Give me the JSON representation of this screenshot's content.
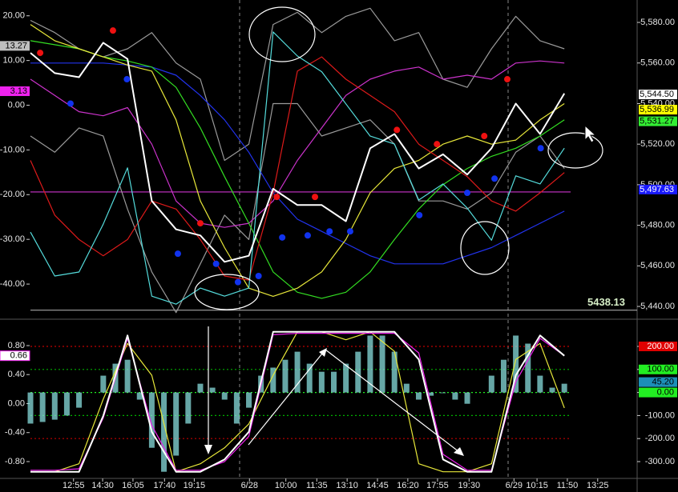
{
  "chart_data": [
    {
      "type": "line",
      "x": [
        0,
        4,
        8,
        12,
        16,
        20,
        24,
        28,
        32,
        36,
        40,
        44,
        48,
        52,
        56,
        60,
        64,
        68,
        72,
        76,
        80,
        84,
        88
      ],
      "xlim": [
        -5.02,
        100
      ],
      "ylim": [
        -47.5,
        22.1
      ],
      "yticks": [
        {
          "value": 20,
          "label": "20.00"
        },
        {
          "value": 10,
          "label": "10.00"
        },
        {
          "value": 0,
          "label": "0.00"
        },
        {
          "value": -10,
          "label": "-10.00"
        },
        {
          "value": -20,
          "label": "-20.00"
        },
        {
          "value": -30,
          "label": "-30.00"
        },
        {
          "value": -40,
          "label": "-40.00"
        }
      ],
      "y2lim": [
        5434.5,
        5587.9
      ],
      "y2ticks": [
        {
          "value": 5440,
          "label": "5,440.00"
        },
        {
          "value": 5460,
          "label": "5,460.00"
        },
        {
          "value": 5480,
          "label": "5,480.00"
        },
        {
          "value": 5500,
          "label": "5,500.00"
        },
        {
          "value": 5520,
          "label": "5,520.00"
        },
        {
          "value": 5540,
          "label": "5,540.00"
        },
        {
          "value": 5560,
          "label": "5,560.00"
        },
        {
          "value": 5580,
          "label": "5,580.00"
        }
      ],
      "series": [
        {
          "color": "#9a9a9a",
          "axis": "y2",
          "values": [
            5581,
            5575,
            5567,
            5563,
            5567,
            5575,
            5560,
            5552,
            5512,
            5520,
            5579,
            5585,
            5575,
            5583,
            5587,
            5571,
            5575,
            5552,
            5548,
            5567,
            5583,
            5571,
            5567
          ]
        },
        {
          "color": "#9a9a9a",
          "axis": "y2",
          "values": [
            5524,
            5516,
            5528,
            5524,
            5488,
            5457,
            5437,
            5461,
            5485,
            5473,
            5540,
            5540,
            5524,
            5528,
            5532,
            5520,
            5492,
            5492,
            5488,
            5496,
            5516,
            5524,
            5508
          ]
        },
        {
          "color": "#cc33cc",
          "axis": "y2",
          "values": [
            5552,
            5544,
            5536,
            5534,
            5538,
            5520,
            5492,
            5481,
            5479,
            5481,
            5492,
            5512,
            5528,
            5544,
            5552,
            5556,
            5558,
            5552,
            5554,
            5552,
            5560,
            5561,
            5560
          ]
        },
        {
          "color": "#2233ee",
          "axis": "y2",
          "values": [
            5560,
            5560,
            5560,
            5560,
            5559,
            5558,
            5554,
            5544,
            5532,
            5516,
            5496,
            5483,
            5477,
            5471,
            5465,
            5461,
            5461,
            5461,
            5465,
            5469,
            5475,
            5481,
            5487
          ]
        },
        {
          "color": "#33dd22",
          "axis": "y2",
          "values": [
            5571,
            5569,
            5567,
            5563,
            5561,
            5558,
            5548,
            5528,
            5504,
            5481,
            5457,
            5447,
            5444,
            5447,
            5457,
            5473,
            5488,
            5500,
            5508,
            5514,
            5518,
            5524,
            5532
          ]
        },
        {
          "color": "#e8e83a",
          "axis": "y2",
          "values": [
            5579,
            5571,
            5567,
            5563,
            5559,
            5556,
            5532,
            5492,
            5469,
            5449,
            5445,
            5449,
            5457,
            5473,
            5496,
            5508,
            5512,
            5520,
            5524,
            5520,
            5522,
            5532,
            5540
          ]
        },
        {
          "color": "#dd1a1a",
          "axis": "y2",
          "values": [
            5512,
            5485,
            5473,
            5465,
            5473,
            5492,
            5488,
            5473,
            5455,
            5453,
            5496,
            5556,
            5563,
            5552,
            5544,
            5536,
            5520,
            5512,
            5504,
            5492,
            5487,
            5496,
            5506
          ]
        },
        {
          "color": "#55dddd",
          "axis": "y",
          "values": [
            -28.4,
            -38.2,
            -37.3,
            -26.6,
            -14.0,
            -42.7,
            -44.5,
            -40.9,
            -42.7,
            -40.9,
            16.4,
            11.0,
            7.5,
            0.3,
            -6.9,
            -8.7,
            -21.2,
            -17.6,
            -23.0,
            -30.2,
            -15.8,
            -17.6,
            -9.6
          ]
        },
        {
          "color": "#ffffff",
          "axis": "y2",
          "values": [
            5565,
            5555,
            5553,
            5570,
            5562,
            5492,
            5478,
            5475,
            5462,
            5465,
            5498,
            5490,
            5490,
            5482,
            5518,
            5525,
            5508,
            5515,
            5505,
            5518,
            5540,
            5525,
            5545
          ]
        },
        {
          "type": "scatter",
          "color": "#ee1111",
          "axis": "y2",
          "x": [
            1.6,
            13.6,
            28.0,
            40.6,
            46.9,
            60.4,
            67.0,
            74.8,
            78.6
          ],
          "values": [
            5565,
            5576,
            5481,
            5494,
            5494,
            5527,
            5520,
            5524,
            5552
          ]
        },
        {
          "type": "scatter",
          "color": "#1133ee",
          "axis": "y2",
          "x": [
            6.6,
            15.9,
            24.3,
            30.6,
            34.2,
            37.6,
            41.5,
            45.7,
            49.3,
            52.7,
            64.1,
            72.0,
            76.5,
            84.1
          ],
          "values": [
            5540,
            5552,
            5466,
            5461,
            5452,
            5455,
            5474,
            5475,
            5477,
            5477,
            5485,
            5496,
            5503,
            5518
          ]
        }
      ],
      "hlines": [
        {
          "value": -19.4,
          "axis": "y",
          "color": "#cc33cc"
        }
      ],
      "reference_line": {
        "value": 5438.13,
        "axis": "y2",
        "color": "#bbbbbb"
      },
      "tags": [
        {
          "value": 13.27,
          "label": "13.27",
          "axis": "y",
          "color": "#bfbfbf"
        },
        {
          "value": 3.13,
          "label": "3.13",
          "axis": "y",
          "color": "#ee22ee"
        },
        {
          "value": 5544.5,
          "label": "5,544.50",
          "axis": "y2",
          "color": "#ffffff"
        },
        {
          "value": 5536.99,
          "label": "5,536.99",
          "axis": "y2",
          "color": "#ffff00"
        },
        {
          "value": 5531.27,
          "label": "5,531.27",
          "axis": "y2",
          "color": "#33ee33"
        },
        {
          "value": 5497.63,
          "label": "5,497.63",
          "axis": "y2",
          "color": "#1a1aff"
        }
      ]
    },
    {
      "type": "line",
      "x": [
        0,
        4,
        8,
        12,
        16,
        20,
        24,
        28,
        32,
        36,
        40,
        44,
        48,
        52,
        56,
        60,
        64,
        68,
        72,
        76,
        80,
        84,
        88
      ],
      "xlim": [
        -5.02,
        100
      ],
      "xticks": [
        {
          "value": 7.1,
          "label": "12:55"
        },
        {
          "value": 11.9,
          "label": "14:30"
        },
        {
          "value": 16.9,
          "label": "16:05"
        },
        {
          "value": 22.1,
          "label": "17:40"
        },
        {
          "value": 27.0,
          "label": "19:15"
        },
        {
          "value": 36.1,
          "label": "6/28"
        },
        {
          "value": 42.1,
          "label": "10:00"
        },
        {
          "value": 47.2,
          "label": "11:35"
        },
        {
          "value": 52.2,
          "label": "13:10"
        },
        {
          "value": 57.2,
          "label": "14:45"
        },
        {
          "value": 62.2,
          "label": "16:20"
        },
        {
          "value": 67.1,
          "label": "17:55"
        },
        {
          "value": 72.3,
          "label": "19:30"
        },
        {
          "value": 79.7,
          "label": "6/29"
        },
        {
          "value": 83.5,
          "label": "10:15"
        },
        {
          "value": 88.5,
          "label": "11:50"
        },
        {
          "value": 93.5,
          "label": "13:25"
        }
      ],
      "ylim": [
        -1.021,
        1.131
      ],
      "yticks": [
        {
          "value": 0.8,
          "label": "0.80"
        },
        {
          "value": 0.4,
          "label": "0.40"
        },
        {
          "value": 0,
          "label": "0.00"
        },
        {
          "value": -0.4,
          "label": "-0.40"
        },
        {
          "value": -0.8,
          "label": "-0.80"
        }
      ],
      "y2lim": [
        -369.4,
        307.6
      ],
      "y2ticks": [
        {
          "value": 200,
          "label": "200.00"
        },
        {
          "value": 100,
          "label": "100.00"
        },
        {
          "value": 0,
          "label": "0.00"
        },
        {
          "value": -100,
          "label": "-100.00"
        },
        {
          "value": -200,
          "label": "-200.00"
        },
        {
          "value": -300,
          "label": "-300.00"
        }
      ],
      "series": [
        {
          "type": "bar",
          "color": "#88dddd",
          "axis": "y2",
          "x": [
            0,
            2,
            4,
            6,
            8,
            10,
            12,
            14,
            16,
            18,
            20,
            22,
            24,
            26,
            28,
            30,
            32,
            34,
            36,
            38,
            40,
            42,
            44,
            46,
            48,
            50,
            52,
            54,
            56,
            58,
            60,
            62,
            64,
            66,
            68,
            70,
            72,
            74,
            76,
            78,
            80,
            82,
            84,
            86,
            88
          ],
          "values": [
            -135,
            -128,
            -118,
            -100,
            -66,
            0,
            73,
            125,
            142,
            -31,
            -240,
            -344,
            -274,
            -135,
            38,
            21,
            -31,
            -135,
            -66,
            73,
            108,
            142,
            177,
            125,
            90,
            90,
            125,
            177,
            247,
            247,
            177,
            38,
            -31,
            -14,
            -3,
            -31,
            -49,
            0,
            73,
            142,
            247,
            212,
            73,
            21,
            38
          ]
        },
        {
          "color": "#e8e83a",
          "axis": "y",
          "values": [
            -0.94,
            -0.94,
            -0.83,
            0.06,
            0.83,
            0.39,
            -0.94,
            -0.83,
            -0.61,
            -0.28,
            0.39,
            0.99,
            0.99,
            0.88,
            0.99,
            0.72,
            -0.83,
            -0.94,
            -0.94,
            -0.83,
            0.61,
            0.83,
            -0.06
          ]
        },
        {
          "color": "#ee22ee",
          "axis": "y",
          "values": [
            -0.92,
            -0.92,
            -0.9,
            -0.2,
            0.9,
            -0.3,
            -0.92,
            -0.92,
            -0.8,
            -0.45,
            0.95,
            0.97,
            0.97,
            0.97,
            0.97,
            0.97,
            0.7,
            -0.7,
            -0.92,
            -0.92,
            0.3,
            0.9,
            0.66
          ]
        },
        {
          "color": "#ffffff",
          "axis": "y",
          "values": [
            -0.94,
            -0.94,
            -0.94,
            -0.17,
            0.94,
            -0.39,
            -0.94,
            -0.94,
            -0.77,
            -0.39,
            0.99,
            0.99,
            0.99,
            0.99,
            0.99,
            0.99,
            0.61,
            -0.77,
            -0.94,
            -0.94,
            0.39,
            0.94,
            0.66
          ]
        }
      ],
      "hlines": [
        {
          "value": 200,
          "axis": "y2",
          "color": "#c00000"
        },
        {
          "value": 100,
          "axis": "y2",
          "color": "#00b000"
        },
        {
          "value": 0,
          "axis": "y2",
          "color": "#22ee22"
        },
        {
          "value": -100,
          "axis": "y2",
          "color": "#00b000"
        },
        {
          "value": -200,
          "axis": "y2",
          "color": "#c00000"
        }
      ],
      "tags": [
        {
          "value": 0.66,
          "label": "0.66",
          "axis": "y",
          "color": "#ffffff"
        },
        {
          "value": 200,
          "label": "200.00",
          "axis": "y2",
          "color": "#e00000"
        },
        {
          "value": 100,
          "label": "100.00",
          "axis": "y2",
          "color": "#22ee22"
        },
        {
          "value": 45.2,
          "label": "45.20",
          "axis": "y2",
          "color": "#1c8fb8"
        },
        {
          "value": 0,
          "label": "0.00",
          "axis": "y2",
          "color": "#22ee22"
        }
      ]
    }
  ]
}
